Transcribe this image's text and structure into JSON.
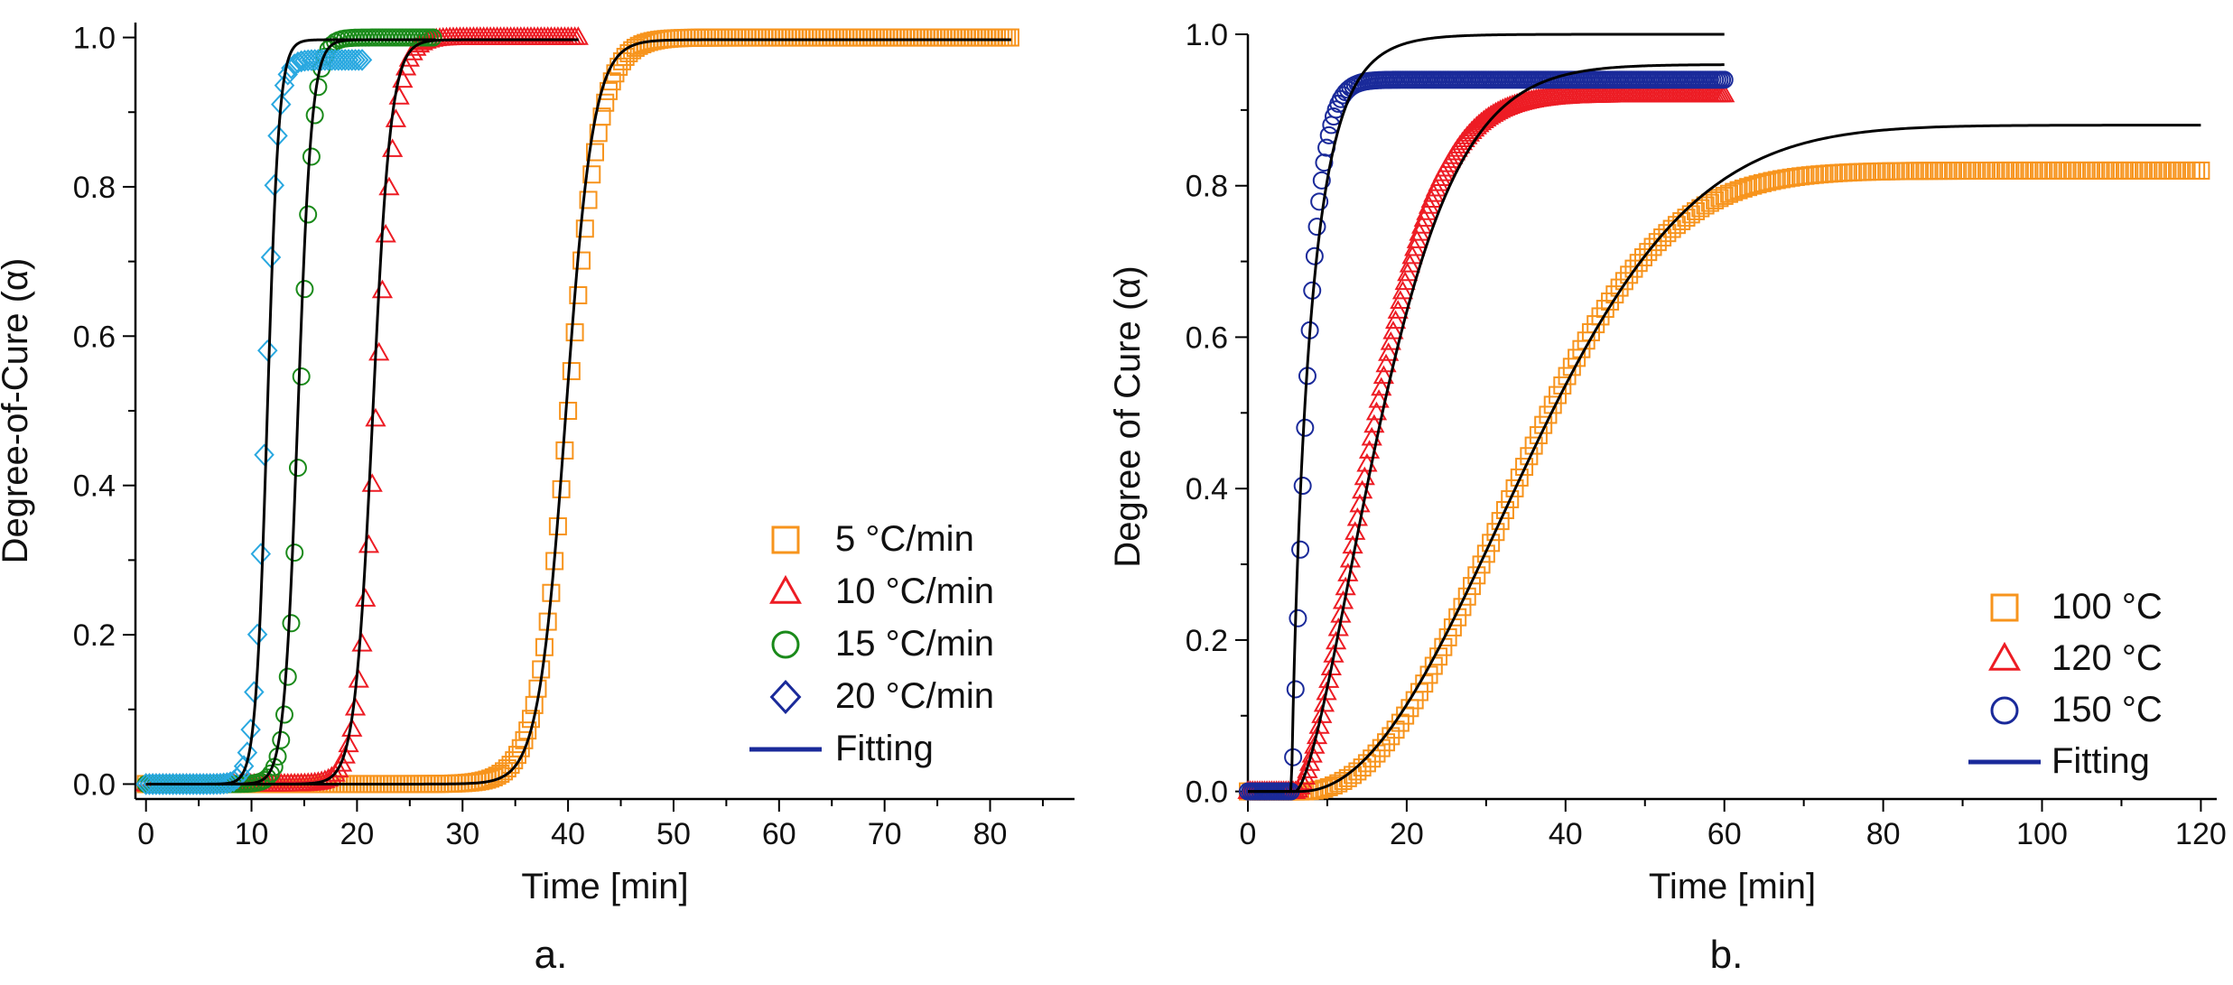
{
  "figure": {
    "panel_a_label": "a.",
    "panel_b_label": "b."
  },
  "chart_data": [
    {
      "type": "scatter",
      "panel": "a",
      "xlabel": "Time [min]",
      "ylabel": "Degree-of-Cure (α)",
      "xlim": [
        -1,
        88
      ],
      "ylim": [
        -0.02,
        1.02
      ],
      "xticks": [
        0,
        10,
        20,
        30,
        40,
        50,
        60,
        70,
        80
      ],
      "yticks": [
        0.0,
        0.2,
        0.4,
        0.6,
        0.8,
        1.0
      ],
      "xtick_labels": [
        "0",
        "10",
        "20",
        "30",
        "40",
        "50",
        "60",
        "70",
        "80"
      ],
      "ytick_labels": [
        "0.0",
        "0.2",
        "0.4",
        "0.6",
        "0.8",
        "1.0"
      ],
      "legend_position": "bottom-right",
      "series": [
        {
          "name": "5   °C/min",
          "marker": "square",
          "color": "#f7941d",
          "x_end": 82,
          "mid": 40.0,
          "width": 1.5,
          "plateau": 1.0,
          "fit_mid": 39.8,
          "fit_width": 1.3,
          "fit_plateau": 0.997
        },
        {
          "name": "10 °C/min",
          "marker": "triangle",
          "color": "#ed1c24",
          "x_end": 41,
          "mid": 21.8,
          "width": 0.9,
          "plateau": 1.0,
          "fit_mid": 21.5,
          "fit_width": 0.85,
          "fit_plateau": 0.997
        },
        {
          "name": "15 °C/min",
          "marker": "circle",
          "color": "#1a8a1a",
          "x_end": 27.5,
          "mid": 14.6,
          "width": 0.65,
          "plateau": 1.0,
          "fit_mid": 14.4,
          "fit_width": 0.65,
          "fit_plateau": 0.997
        },
        {
          "name": "20 °C/min",
          "marker": "diamond",
          "color": "#29a8e0",
          "x_end": 20.5,
          "mid": 11.3,
          "width": 0.55,
          "plateau": 0.97,
          "fit_mid": 11.5,
          "fit_width": 0.55,
          "fit_plateau": 0.997
        }
      ],
      "legend_diamond_color": "#1a2a9a",
      "fitting_label": "Fitting",
      "fitting_legend_color": "#1a2a9a",
      "fitting_curve_color": "#000000"
    },
    {
      "type": "scatter",
      "panel": "b",
      "xlabel": "Time [min]",
      "ylabel": "Degree of Cure (α)",
      "xlim": [
        0,
        122
      ],
      "ylim": [
        -0.01,
        1.0
      ],
      "xticks": [
        0,
        20,
        40,
        60,
        80,
        100,
        120
      ],
      "yticks": [
        0.0,
        0.2,
        0.4,
        0.6,
        0.8,
        1.0
      ],
      "xtick_labels": [
        "0",
        "20",
        "40",
        "60",
        "80",
        "100",
        "120"
      ],
      "ytick_labels": [
        "0.0",
        "0.2",
        "0.4",
        "0.6",
        "0.8",
        "1.0"
      ],
      "legend_position": "bottom-right",
      "series": [
        {
          "name": "100 °C",
          "marker": "square",
          "color": "#f7941d",
          "x_end": 120,
          "t0": 6.5,
          "plateau": 0.82,
          "n": 2.3,
          "k": 0.031,
          "fit_plateau": 0.88,
          "fit_n": 2.1,
          "fit_k": 0.029
        },
        {
          "name": "120 °C",
          "marker": "triangle",
          "color": "#ed1c24",
          "x_end": 60,
          "t0": 6.0,
          "plateau": 0.92,
          "n": 1.7,
          "k": 0.085,
          "fit_plateau": 0.96,
          "fit_n": 1.55,
          "fit_k": 0.075
        },
        {
          "name": "150 °C",
          "marker": "circle",
          "color": "#1a2a9a",
          "x_end": 60,
          "t0": 5.5,
          "plateau": 0.94,
          "n": 1.25,
          "k": 0.45,
          "fit_plateau": 1.0,
          "fit_n": 0.85,
          "fit_k": 0.4
        }
      ],
      "fitting_label": "Fitting",
      "fitting_legend_color": "#1a2a9a",
      "fitting_curve_color": "#000000"
    }
  ]
}
